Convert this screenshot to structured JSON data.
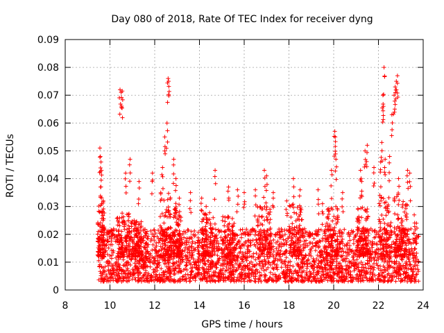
{
  "chart_data": {
    "type": "scatter",
    "title": "Day 080 of 2018, Rate Of TEC Index for receiver dyng",
    "xlabel": "GPS time / hours",
    "ylabel": "ROTI / TECUs",
    "xlim": [
      8,
      24
    ],
    "ylim": [
      0,
      0.09
    ],
    "xticks": [
      8,
      10,
      12,
      14,
      16,
      18,
      20,
      22,
      24
    ],
    "yticks": [
      0,
      0.01,
      0.02,
      0.03,
      0.04,
      0.05,
      0.06,
      0.07,
      0.08,
      0.09
    ],
    "ytick_labels": [
      "0",
      "0.01",
      "0.02",
      "0.03",
      "0.04",
      "0.05",
      "0.06",
      "0.07",
      "0.08",
      "0.09"
    ],
    "xtick_labels": [
      "8",
      "10",
      "12",
      "14",
      "16",
      "18",
      "20",
      "22",
      "24"
    ],
    "grid": true,
    "marker": "+",
    "color": "#ff0000",
    "time_range": [
      9.5,
      23.8
    ],
    "baseline_range": [
      0.005,
      0.02
    ],
    "peak_points": [
      {
        "x": 9.55,
        "y": 0.051
      },
      {
        "x": 9.6,
        "y": 0.046
      },
      {
        "x": 9.62,
        "y": 0.043
      },
      {
        "x": 9.58,
        "y": 0.037
      },
      {
        "x": 9.7,
        "y": 0.032
      },
      {
        "x": 10.45,
        "y": 0.072
      },
      {
        "x": 10.5,
        "y": 0.071
      },
      {
        "x": 10.55,
        "y": 0.0715
      },
      {
        "x": 10.7,
        "y": 0.042
      },
      {
        "x": 10.9,
        "y": 0.047
      },
      {
        "x": 11.3,
        "y": 0.039
      },
      {
        "x": 11.9,
        "y": 0.042
      },
      {
        "x": 12.35,
        "y": 0.044
      },
      {
        "x": 12.45,
        "y": 0.055
      },
      {
        "x": 12.55,
        "y": 0.06
      },
      {
        "x": 12.6,
        "y": 0.076
      },
      {
        "x": 12.62,
        "y": 0.075
      },
      {
        "x": 12.85,
        "y": 0.047
      },
      {
        "x": 12.95,
        "y": 0.04
      },
      {
        "x": 13.1,
        "y": 0.033
      },
      {
        "x": 13.6,
        "y": 0.035
      },
      {
        "x": 14.1,
        "y": 0.033
      },
      {
        "x": 14.3,
        "y": 0.03
      },
      {
        "x": 14.7,
        "y": 0.043
      },
      {
        "x": 15.3,
        "y": 0.037
      },
      {
        "x": 15.7,
        "y": 0.036
      },
      {
        "x": 16.0,
        "y": 0.035
      },
      {
        "x": 16.5,
        "y": 0.036
      },
      {
        "x": 16.9,
        "y": 0.043
      },
      {
        "x": 17.0,
        "y": 0.041
      },
      {
        "x": 17.3,
        "y": 0.035
      },
      {
        "x": 17.9,
        "y": 0.032
      },
      {
        "x": 18.2,
        "y": 0.04
      },
      {
        "x": 18.5,
        "y": 0.036
      },
      {
        "x": 19.3,
        "y": 0.036
      },
      {
        "x": 19.5,
        "y": 0.031
      },
      {
        "x": 19.9,
        "y": 0.043
      },
      {
        "x": 20.05,
        "y": 0.057
      },
      {
        "x": 20.07,
        "y": 0.055
      },
      {
        "x": 20.1,
        "y": 0.047
      },
      {
        "x": 20.4,
        "y": 0.035
      },
      {
        "x": 21.2,
        "y": 0.043
      },
      {
        "x": 21.25,
        "y": 0.039
      },
      {
        "x": 21.4,
        "y": 0.05
      },
      {
        "x": 21.5,
        "y": 0.052
      },
      {
        "x": 21.8,
        "y": 0.044
      },
      {
        "x": 22.1,
        "y": 0.046
      },
      {
        "x": 22.15,
        "y": 0.053
      },
      {
        "x": 22.2,
        "y": 0.07
      },
      {
        "x": 22.22,
        "y": 0.066
      },
      {
        "x": 22.25,
        "y": 0.08
      },
      {
        "x": 22.3,
        "y": 0.047
      },
      {
        "x": 22.5,
        "y": 0.048
      },
      {
        "x": 22.6,
        "y": 0.063
      },
      {
        "x": 22.7,
        "y": 0.07
      },
      {
        "x": 22.75,
        "y": 0.073
      },
      {
        "x": 22.8,
        "y": 0.075
      },
      {
        "x": 22.85,
        "y": 0.077
      },
      {
        "x": 22.9,
        "y": 0.04
      },
      {
        "x": 23.3,
        "y": 0.043
      },
      {
        "x": 23.4,
        "y": 0.042
      },
      {
        "x": 23.6,
        "y": 0.027
      },
      {
        "x": 23.7,
        "y": 0.024
      }
    ],
    "activity_bands": [
      {
        "x_center": 9.6,
        "width": 0.3,
        "y_max": 0.032
      },
      {
        "x_center": 10.6,
        "width": 0.6,
        "y_max": 0.028
      },
      {
        "x_center": 11.2,
        "width": 0.5,
        "y_max": 0.025
      },
      {
        "x_center": 12.5,
        "width": 0.6,
        "y_max": 0.035
      },
      {
        "x_center": 13.0,
        "width": 0.4,
        "y_max": 0.03
      },
      {
        "x_center": 14.4,
        "width": 0.6,
        "y_max": 0.028
      },
      {
        "x_center": 15.3,
        "width": 0.6,
        "y_max": 0.027
      },
      {
        "x_center": 16.9,
        "width": 0.6,
        "y_max": 0.03
      },
      {
        "x_center": 18.3,
        "width": 0.6,
        "y_max": 0.032
      },
      {
        "x_center": 19.9,
        "width": 0.6,
        "y_max": 0.03
      },
      {
        "x_center": 21.3,
        "width": 0.5,
        "y_max": 0.03
      },
      {
        "x_center": 22.3,
        "width": 0.6,
        "y_max": 0.035
      },
      {
        "x_center": 23.0,
        "width": 0.6,
        "y_max": 0.035
      }
    ]
  }
}
